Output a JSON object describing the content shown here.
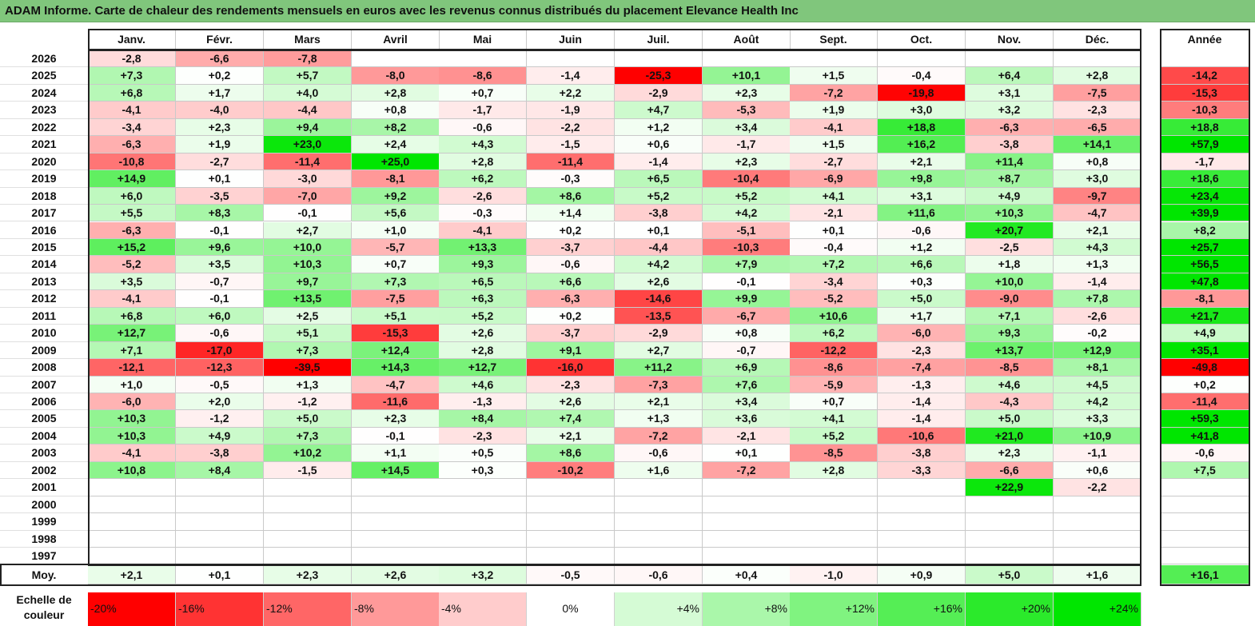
{
  "title": "ADAM Informe. Carte de chaleur des rendements mensuels en euros avec les revenus connus distribués du placement Elevance Health Inc",
  "chart_data": {
    "type": "heatmap",
    "title": "ADAM Informe. Carte de chaleur des rendements mensuels en euros avec les revenus connus distribués du placement Elevance Health Inc",
    "columns": [
      "Janv.",
      "Févr.",
      "Mars",
      "Avril",
      "Mai",
      "Juin",
      "Juil.",
      "Août",
      "Sept.",
      "Oct.",
      "Nov.",
      "Déc."
    ],
    "year_column_label": "Année",
    "average_label": "Moy.",
    "rows": [
      {
        "year": "2026",
        "months": [
          "-2,8",
          "-6,6",
          "-7,8",
          "",
          "",
          "",
          "",
          "",
          "",
          "",
          "",
          ""
        ],
        "annual": ""
      },
      {
        "year": "2025",
        "months": [
          "+7,3",
          "+0,2",
          "+5,7",
          "-8,0",
          "-8,6",
          "-1,4",
          "-25,3",
          "+10,1",
          "+1,5",
          "-0,4",
          "+6,4",
          "+2,8"
        ],
        "annual": "-14,2"
      },
      {
        "year": "2024",
        "months": [
          "+6,8",
          "+1,7",
          "+4,0",
          "+2,8",
          "+0,7",
          "+2,2",
          "-2,9",
          "+2,3",
          "-7,2",
          "-19,8",
          "+3,1",
          "-7,5"
        ],
        "annual": "-15,3"
      },
      {
        "year": "2023",
        "months": [
          "-4,1",
          "-4,0",
          "-4,4",
          "+0,8",
          "-1,7",
          "-1,9",
          "+4,7",
          "-5,3",
          "+1,9",
          "+3,0",
          "+3,2",
          "-2,3"
        ],
        "annual": "-10,3"
      },
      {
        "year": "2022",
        "months": [
          "-3,4",
          "+2,3",
          "+9,4",
          "+8,2",
          "-0,6",
          "-2,2",
          "+1,2",
          "+3,4",
          "-4,1",
          "+18,8",
          "-6,3",
          "-6,5"
        ],
        "annual": "+18,8"
      },
      {
        "year": "2021",
        "months": [
          "-6,3",
          "+1,9",
          "+23,0",
          "+2,4",
          "+4,3",
          "-1,5",
          "+0,6",
          "-1,7",
          "+1,5",
          "+16,2",
          "-3,8",
          "+14,1"
        ],
        "annual": "+57,9"
      },
      {
        "year": "2020",
        "months": [
          "-10,8",
          "-2,7",
          "-11,4",
          "+25,0",
          "+2,8",
          "-11,4",
          "-1,4",
          "+2,3",
          "-2,7",
          "+2,1",
          "+11,4",
          "+0,8"
        ],
        "annual": "-1,7"
      },
      {
        "year": "2019",
        "months": [
          "+14,9",
          "+0,1",
          "-3,0",
          "-8,1",
          "+6,2",
          "-0,3",
          "+6,5",
          "-10,4",
          "-6,9",
          "+9,8",
          "+8,7",
          "+3,0"
        ],
        "annual": "+18,6"
      },
      {
        "year": "2018",
        "months": [
          "+6,0",
          "-3,5",
          "-7,0",
          "+9,2",
          "-2,6",
          "+8,6",
          "+5,2",
          "+5,2",
          "+4,1",
          "+3,1",
          "+4,9",
          "-9,7"
        ],
        "annual": "+23,4"
      },
      {
        "year": "2017",
        "months": [
          "+5,5",
          "+8,3",
          "-0,1",
          "+5,6",
          "-0,3",
          "+1,4",
          "-3,8",
          "+4,2",
          "-2,1",
          "+11,6",
          "+10,3",
          "-4,7"
        ],
        "annual": "+39,9"
      },
      {
        "year": "2016",
        "months": [
          "-6,3",
          "-0,1",
          "+2,7",
          "+1,0",
          "-4,1",
          "+0,2",
          "+0,1",
          "-5,1",
          "+0,1",
          "-0,6",
          "+20,7",
          "+2,1"
        ],
        "annual": "+8,2"
      },
      {
        "year": "2015",
        "months": [
          "+15,2",
          "+9,6",
          "+10,0",
          "-5,7",
          "+13,3",
          "-3,7",
          "-4,4",
          "-10,3",
          "-0,4",
          "+1,2",
          "-2,5",
          "+4,3"
        ],
        "annual": "+25,7"
      },
      {
        "year": "2014",
        "months": [
          "-5,2",
          "+3,5",
          "+10,3",
          "+0,7",
          "+9,3",
          "-0,6",
          "+4,2",
          "+7,9",
          "+7,2",
          "+6,6",
          "+1,8",
          "+1,3"
        ],
        "annual": "+56,5"
      },
      {
        "year": "2013",
        "months": [
          "+3,5",
          "-0,7",
          "+9,7",
          "+7,3",
          "+6,5",
          "+6,6",
          "+2,6",
          "-0,1",
          "-3,4",
          "+0,3",
          "+10,0",
          "-1,4"
        ],
        "annual": "+47,8"
      },
      {
        "year": "2012",
        "months": [
          "-4,1",
          "-0,1",
          "+13,5",
          "-7,5",
          "+6,3",
          "-6,3",
          "-14,6",
          "+9,9",
          "-5,2",
          "+5,0",
          "-9,0",
          "+7,8"
        ],
        "annual": "-8,1"
      },
      {
        "year": "2011",
        "months": [
          "+6,8",
          "+6,0",
          "+2,5",
          "+5,1",
          "+5,2",
          "+0,2",
          "-13,5",
          "-6,7",
          "+10,6",
          "+1,7",
          "+7,1",
          "-2,6"
        ],
        "annual": "+21,7"
      },
      {
        "year": "2010",
        "months": [
          "+12,7",
          "-0,6",
          "+5,1",
          "-15,3",
          "+2,6",
          "-3,7",
          "-2,9",
          "+0,8",
          "+6,2",
          "-6,0",
          "+9,3",
          "-0,2"
        ],
        "annual": "+4,9"
      },
      {
        "year": "2009",
        "months": [
          "+7,1",
          "-17,0",
          "+7,3",
          "+12,4",
          "+2,8",
          "+9,1",
          "+2,7",
          "-0,7",
          "-12,2",
          "-2,3",
          "+13,7",
          "+12,9"
        ],
        "annual": "+35,1"
      },
      {
        "year": "2008",
        "months": [
          "-12,1",
          "-12,3",
          "-39,5",
          "+14,3",
          "+12,7",
          "-16,0",
          "+11,2",
          "+6,9",
          "-8,6",
          "-7,4",
          "-8,5",
          "+8,1"
        ],
        "annual": "-49,8"
      },
      {
        "year": "2007",
        "months": [
          "+1,0",
          "-0,5",
          "+1,3",
          "-4,7",
          "+4,6",
          "-2,3",
          "-7,3",
          "+7,6",
          "-5,9",
          "-1,3",
          "+4,6",
          "+4,5"
        ],
        "annual": "+0,2"
      },
      {
        "year": "2006",
        "months": [
          "-6,0",
          "+2,0",
          "-1,2",
          "-11,6",
          "-1,3",
          "+2,6",
          "+2,1",
          "+3,4",
          "+0,7",
          "-1,4",
          "-4,3",
          "+4,2"
        ],
        "annual": "-11,4"
      },
      {
        "year": "2005",
        "months": [
          "+10,3",
          "-1,2",
          "+5,0",
          "+2,3",
          "+8,4",
          "+7,4",
          "+1,3",
          "+3,6",
          "+4,1",
          "-1,4",
          "+5,0",
          "+3,3"
        ],
        "annual": "+59,3"
      },
      {
        "year": "2004",
        "months": [
          "+10,3",
          "+4,9",
          "+7,3",
          "-0,1",
          "-2,3",
          "+2,1",
          "-7,2",
          "-2,1",
          "+5,2",
          "-10,6",
          "+21,0",
          "+10,9"
        ],
        "annual": "+41,8"
      },
      {
        "year": "2003",
        "months": [
          "-4,1",
          "-3,8",
          "+10,2",
          "+1,1",
          "+0,5",
          "+8,6",
          "-0,6",
          "+0,1",
          "-8,5",
          "-3,8",
          "+2,3",
          "-1,1"
        ],
        "annual": "-0,6"
      },
      {
        "year": "2002",
        "months": [
          "+10,8",
          "+8,4",
          "-1,5",
          "+14,5",
          "+0,3",
          "-10,2",
          "+1,6",
          "-7,2",
          "+2,8",
          "-3,3",
          "-6,6",
          "+0,6"
        ],
        "annual": "+7,5"
      },
      {
        "year": "2001",
        "months": [
          "",
          "",
          "",
          "",
          "",
          "",
          "",
          "",
          "",
          "",
          "+22,9",
          "-2,2"
        ],
        "annual": ""
      },
      {
        "year": "2000",
        "months": [
          "",
          "",
          "",
          "",
          "",
          "",
          "",
          "",
          "",
          "",
          "",
          ""
        ],
        "annual": ""
      },
      {
        "year": "1999",
        "months": [
          "",
          "",
          "",
          "",
          "",
          "",
          "",
          "",
          "",
          "",
          "",
          ""
        ],
        "annual": ""
      },
      {
        "year": "1998",
        "months": [
          "",
          "",
          "",
          "",
          "",
          "",
          "",
          "",
          "",
          "",
          "",
          ""
        ],
        "annual": ""
      },
      {
        "year": "1997",
        "months": [
          "",
          "",
          "",
          "",
          "",
          "",
          "",
          "",
          "",
          "",
          "",
          ""
        ],
        "annual": ""
      }
    ],
    "average": {
      "months": [
        "+2,1",
        "+0,1",
        "+2,3",
        "+2,6",
        "+3,2",
        "-0,5",
        "-0,6",
        "+0,4",
        "-1,0",
        "+0,9",
        "+5,0",
        "+1,6"
      ],
      "annual": "+16,1"
    },
    "legend": {
      "title": "Echelle de couleur",
      "labels": [
        "-20%",
        "-16%",
        "-12%",
        "-8%",
        "-4%",
        "0%",
        "+4%",
        "+8%",
        "+12%",
        "+16%",
        "+20%",
        "+24%"
      ],
      "values": [
        -20,
        -16,
        -12,
        -8,
        -4,
        0,
        4,
        8,
        12,
        16,
        20,
        24
      ]
    }
  }
}
